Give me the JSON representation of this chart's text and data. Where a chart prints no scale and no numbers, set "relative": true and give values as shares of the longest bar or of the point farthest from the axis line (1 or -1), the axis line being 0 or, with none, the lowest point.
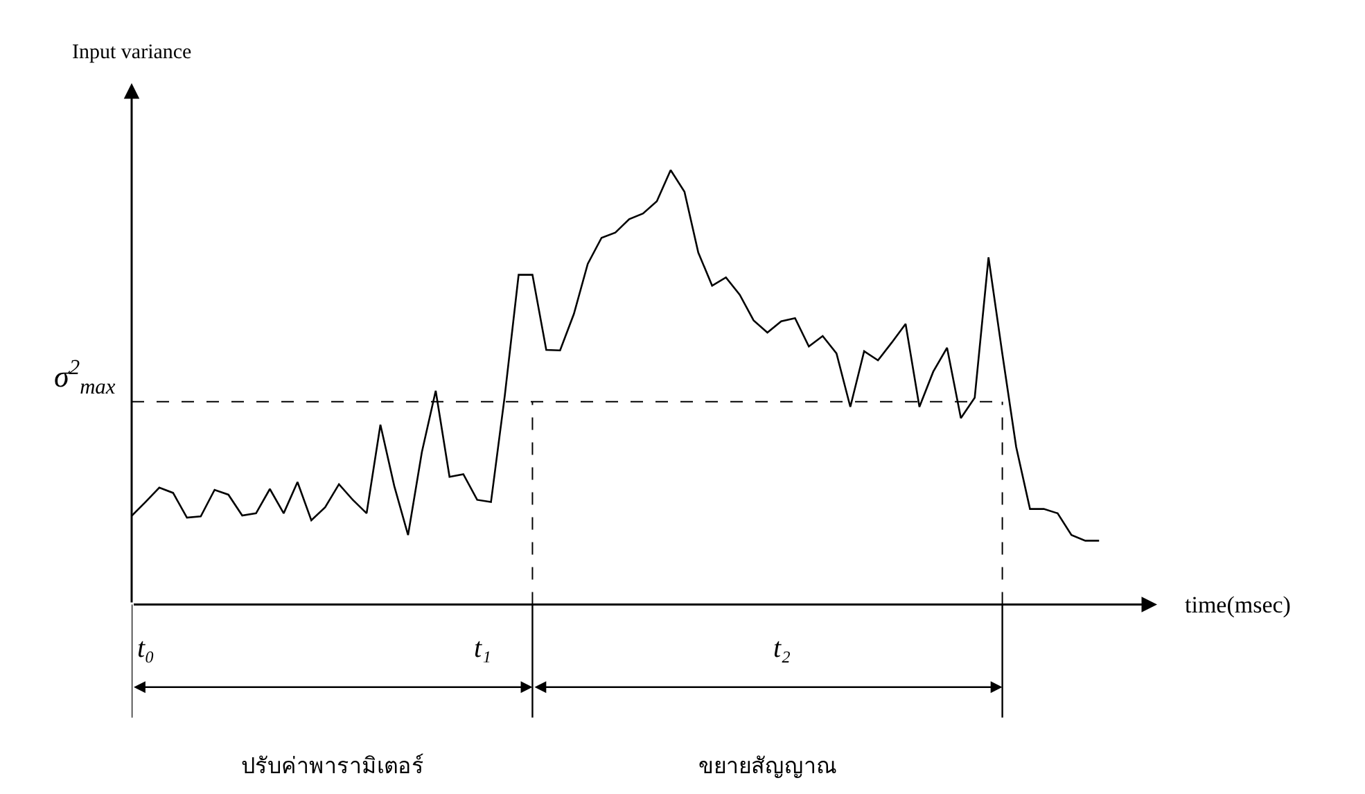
{
  "chart_data": {
    "type": "line",
    "relative": true,
    "xlabel": "time(msec)",
    "color": "#000000",
    "marker": "none",
    "line_style": "solid",
    "legend": false,
    "categories": [
      null,
      null,
      null,
      null,
      null,
      null,
      null,
      null,
      null,
      null,
      null,
      null,
      null,
      null,
      null,
      null,
      null,
      null,
      null,
      null,
      null,
      null,
      null,
      null,
      null,
      null,
      null,
      null,
      null,
      null,
      null,
      null,
      null,
      null,
      null,
      null,
      null,
      null,
      null,
      null,
      null,
      null,
      null,
      null,
      null,
      null,
      null,
      null,
      null,
      null,
      null,
      null,
      null,
      null,
      null,
      null,
      null,
      null,
      null,
      null,
      null,
      null,
      null,
      null,
      null,
      null,
      null,
      null,
      null,
      null,
      null
    ],
    "values": [
      0.204,
      0.236,
      0.269,
      0.257,
      0.2,
      0.203,
      0.264,
      0.253,
      0.205,
      0.21,
      0.266,
      0.21,
      0.282,
      0.194,
      0.224,
      0.277,
      0.241,
      0.21,
      0.414,
      0.273,
      0.16,
      0.351,
      0.492,
      0.294,
      0.3,
      0.241,
      0.236,
      0.481,
      0.759,
      0.759,
      0.586,
      0.585,
      0.669,
      0.784,
      0.844,
      0.856,
      0.887,
      0.9,
      0.928,
      1.0,
      0.95,
      0.81,
      0.734,
      0.753,
      0.713,
      0.654,
      0.626,
      0.652,
      0.659,
      0.594,
      0.618,
      0.578,
      0.455,
      0.583,
      0.562,
      0.603,
      0.646,
      0.455,
      0.536,
      0.591,
      0.429,
      0.476,
      0.799,
      0.577,
      0.363,
      0.22,
      0.22,
      0.21,
      0.16,
      0.147,
      0.147
    ],
    "ref_lines": [
      {
        "axis": "y",
        "value": 0.467,
        "label": "σ$^{2}$$_{max}$",
        "line_style": "dashed"
      }
    ],
    "annotations": [
      "Input variance",
      "t₀",
      "t₁",
      "t₂",
      "ปรับค่าพารามิเตอร์",
      "ขยายสัญญาณ"
    ]
  }
}
